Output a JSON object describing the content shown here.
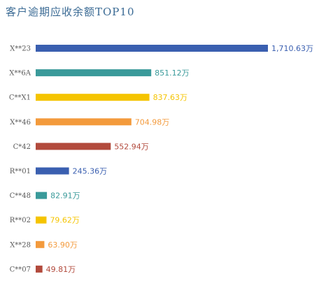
{
  "chart_data": {
    "type": "bar",
    "orientation": "horizontal",
    "title": "客户逾期应收余额TOP10",
    "categories": [
      "X**23",
      "X**6A",
      "C**X1",
      "X**46",
      "C*42",
      "R**01",
      "C**48",
      "R**02",
      "X**28",
      "C**07"
    ],
    "values": [
      1710.63,
      851.12,
      837.63,
      704.98,
      552.94,
      245.36,
      82.91,
      79.62,
      63.9,
      49.81
    ],
    "value_labels": [
      "1,710.63万",
      "851.12万",
      "837.63万",
      "704.98万",
      "552.94万",
      "245.36万",
      "82.91万",
      "79.62万",
      "63.90万",
      "49.81万"
    ],
    "colors": [
      "#3a5fb0",
      "#3a9a9a",
      "#f5c400",
      "#f39a3c",
      "#b24a3c",
      "#3a5fb0",
      "#3a9a9a",
      "#f5c400",
      "#f39a3c",
      "#b24a3c"
    ],
    "grid": false,
    "legend": "none"
  }
}
